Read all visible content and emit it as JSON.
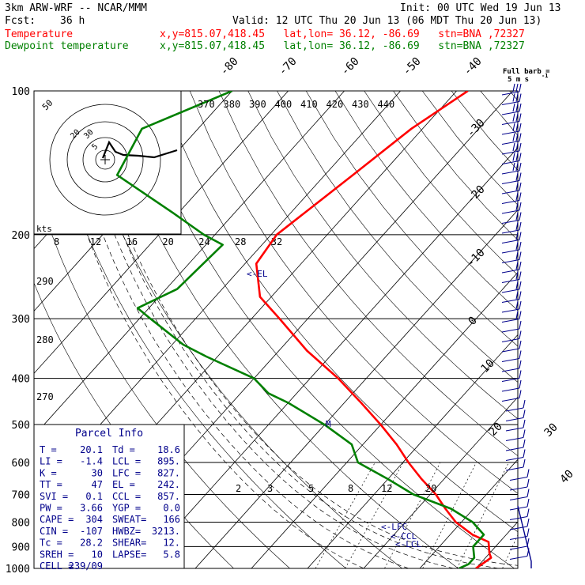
{
  "header": {
    "model": "3km ARW-WRF -- NCAR/MMM",
    "init": "Init: 00 UTC Wed 19 Jun 13",
    "fcst_label": "Fcst:",
    "fcst_value": "36 h",
    "valid": "Valid: 12 UTC Thu 20 Jun 13 (06 MDT Thu 20 Jun 13)",
    "temp_label": "Temperature",
    "dew_label": "Dewpoint temperature",
    "temp_loc": "x,y=815.07,418.45   lat,lon= 36.12, -86.69   stn=BNA ,72327",
    "dew_loc": "x,y=815.07,418.45   lat,lon= 36.12, -86.69   stn=BNA ,72327"
  },
  "colors": {
    "temperature": "#ff0000",
    "dewpoint": "#008000",
    "barb": "#00008b",
    "parcel": "#00008b"
  },
  "chart_data": {
    "type": "line",
    "pressure_levels": [
      100,
      200,
      300,
      400,
      500,
      600,
      700,
      800,
      900,
      1000
    ],
    "isotherm_labels": [
      "-80",
      "-70",
      "-60",
      "-50",
      "-40",
      "-30",
      "-20",
      "-10",
      "0",
      "10",
      "20",
      "30",
      "40"
    ],
    "theta_labels": [
      "370",
      "380",
      "390",
      "400",
      "410",
      "420",
      "430",
      "440"
    ],
    "theta_side_labels": [
      "290",
      "280",
      "270"
    ],
    "mixing_ratio_labels": [
      "2",
      "3",
      "5",
      "8",
      "12",
      "20"
    ],
    "series": [
      {
        "name": "Temperature",
        "points": [
          [
            100,
            -58
          ],
          [
            120,
            -62
          ],
          [
            150,
            -65
          ],
          [
            200,
            -69
          ],
          [
            230,
            -68
          ],
          [
            270,
            -62
          ],
          [
            300,
            -55
          ],
          [
            350,
            -45
          ],
          [
            400,
            -35
          ],
          [
            450,
            -27
          ],
          [
            500,
            -20
          ],
          [
            550,
            -14
          ],
          [
            600,
            -9
          ],
          [
            650,
            -4
          ],
          [
            700,
            1
          ],
          [
            750,
            5
          ],
          [
            800,
            9
          ],
          [
            850,
            14
          ],
          [
            880,
            18
          ],
          [
            930,
            20
          ],
          [
            950,
            21
          ],
          [
            1000,
            20
          ]
        ]
      },
      {
        "name": "Dewpoint temperature",
        "points": [
          [
            100,
            -100
          ],
          [
            120,
            -110
          ],
          [
            150,
            -107
          ],
          [
            180,
            -91
          ],
          [
            200,
            -82
          ],
          [
            210,
            -77
          ],
          [
            260,
            -78
          ],
          [
            285,
            -82
          ],
          [
            300,
            -78
          ],
          [
            340,
            -68
          ],
          [
            360,
            -62
          ],
          [
            400,
            -50
          ],
          [
            430,
            -45
          ],
          [
            450,
            -40
          ],
          [
            500,
            -30
          ],
          [
            550,
            -22
          ],
          [
            600,
            -18
          ],
          [
            650,
            -10
          ],
          [
            700,
            -3
          ],
          [
            750,
            6
          ],
          [
            800,
            12
          ],
          [
            850,
            16
          ],
          [
            900,
            16
          ],
          [
            950,
            18
          ],
          [
            980,
            18
          ],
          [
            1000,
            17
          ]
        ]
      }
    ],
    "annotations": [
      "<-EL",
      "<-LFC",
      "<-CCL",
      "<-LCL",
      "M"
    ],
    "hodograph": {
      "kts_label": "kts",
      "ring_labels": [
        "5",
        "20",
        "30",
        "50"
      ],
      "axis_labels": [
        "8",
        "12",
        "16",
        "20",
        "24",
        "28",
        "32"
      ]
    },
    "barbs": {
      "title": "Full barb =",
      "unit": "5 m s",
      "superscript": "-1"
    }
  },
  "parcel_info": {
    "title": "Parcel Info",
    "rows": [
      [
        "T  =",
        "20.1",
        "Td =",
        "18.6"
      ],
      [
        "LI =",
        "-1.4",
        "LCL =",
        "895."
      ],
      [
        "K  =",
        "30",
        "LFC =",
        "827."
      ],
      [
        "TT =",
        "47",
        "EL =",
        "242."
      ],
      [
        "SVI =",
        "0.1",
        "CCL =",
        "857."
      ],
      [
        "PW =",
        "3.66",
        "YGP =",
        "0.0"
      ],
      [
        "CAPE =",
        "304",
        "SWEAT=",
        "166"
      ],
      [
        "CIN =",
        "-107",
        "HWBZ=",
        "3213."
      ],
      [
        "Tc =",
        "28.2",
        "SHEAR=",
        "12."
      ],
      [
        "SREH =",
        "10",
        "LAPSE=",
        "5.8"
      ],
      [
        "CELL =",
        "239/09",
        "",
        ""
      ]
    ]
  }
}
